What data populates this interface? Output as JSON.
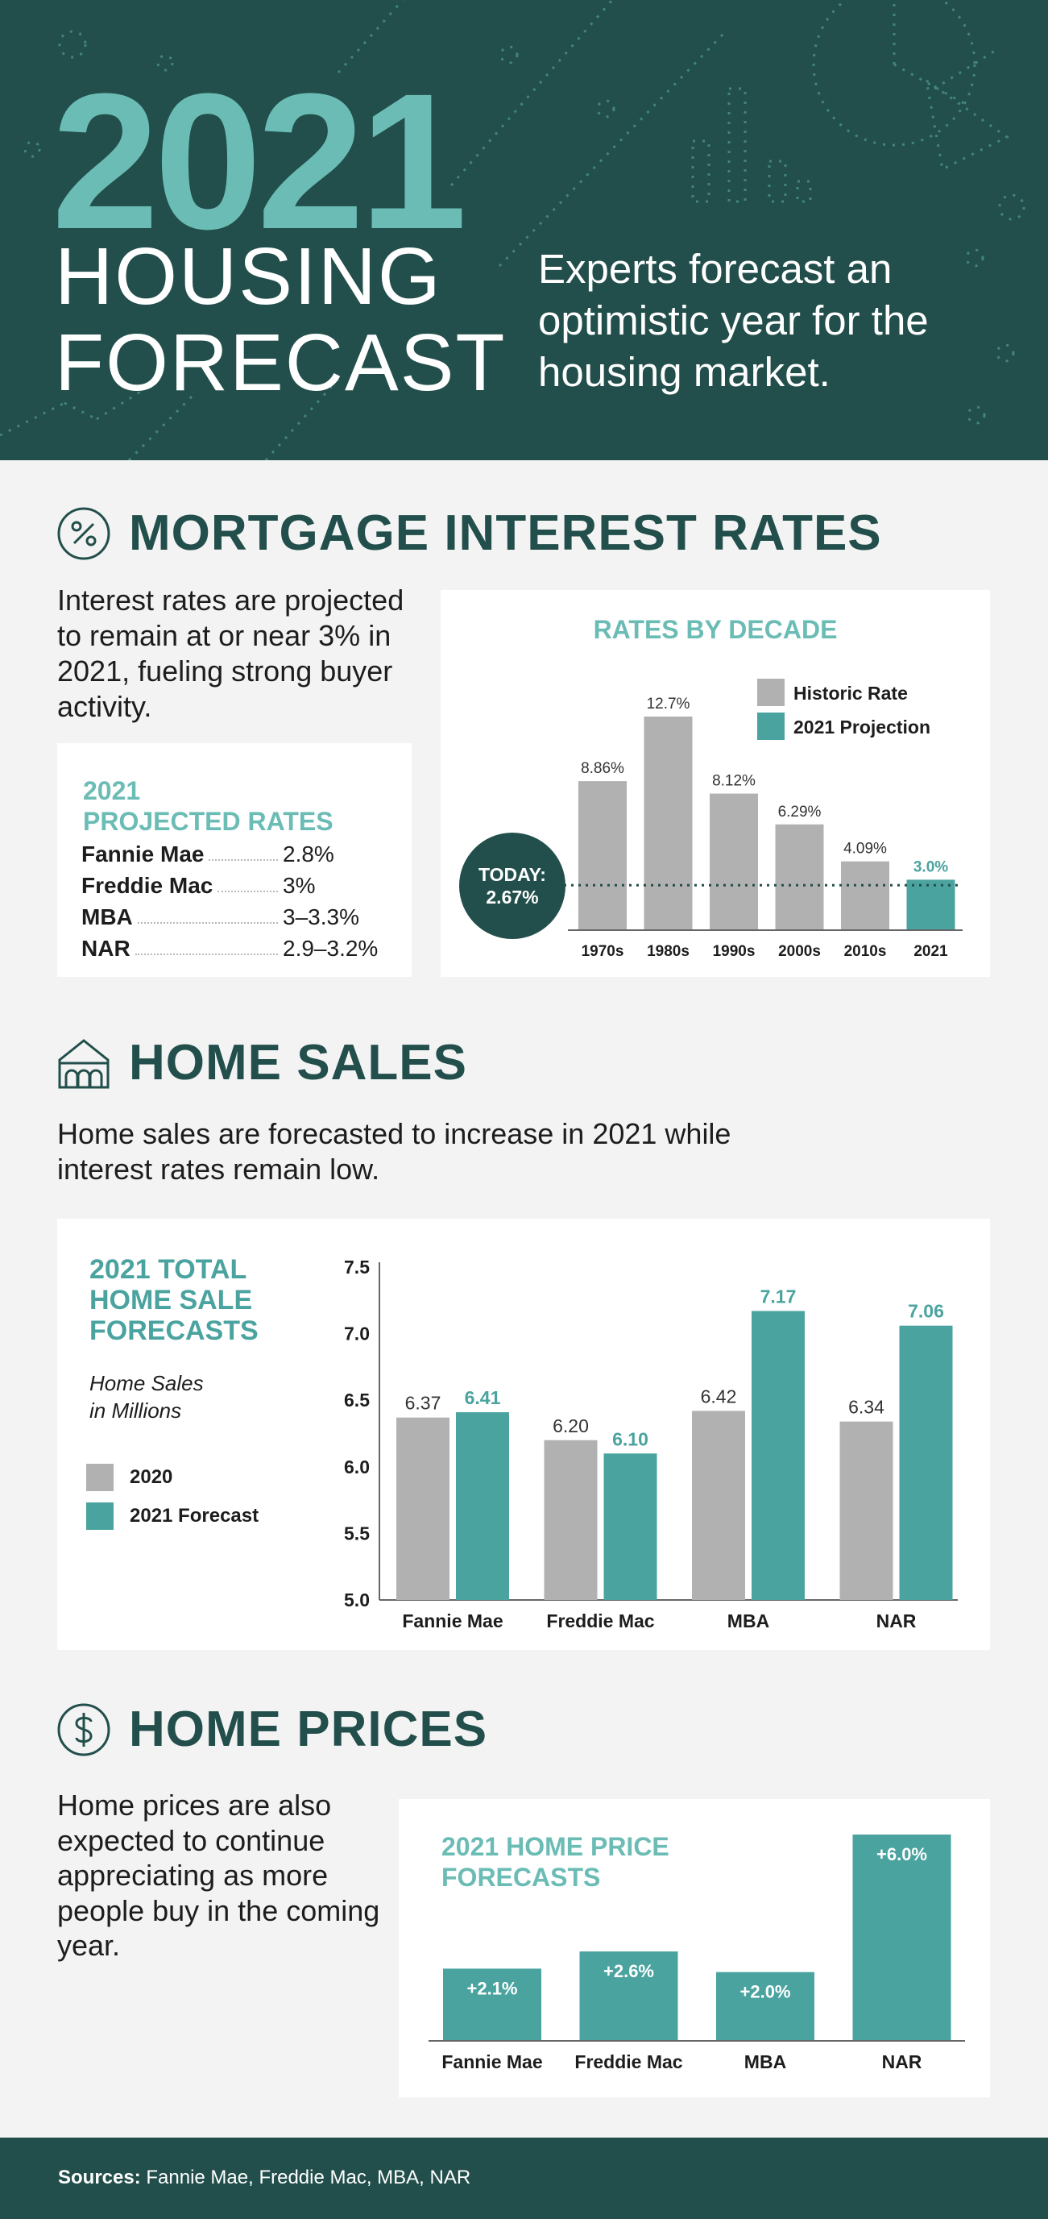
{
  "hero": {
    "year": "2021",
    "title_line1": "HOUSING",
    "title_line2": "FORECAST",
    "subtitle": "Experts forecast an optimistic year for the housing market."
  },
  "mortgage": {
    "heading": "MORTGAGE INTEREST RATES",
    "icon": "percent-icon",
    "intro": "Interest rates are projected to remain at or near 3% in 2021, fueling strong buyer activity.",
    "projected": {
      "title_line1": "2021",
      "title_line2": "PROJECTED RATES",
      "rows": [
        {
          "name": "Fannie Mae",
          "value": "2.8%"
        },
        {
          "name": "Freddie Mac",
          "value": "3%"
        },
        {
          "name": "MBA",
          "value": "3–3.3%"
        },
        {
          "name": "NAR",
          "value": "2.9–3.2%"
        }
      ]
    }
  },
  "sales": {
    "heading": "HOME SALES",
    "icon": "house-icon",
    "intro": "Home sales are forecasted to increase in 2021 while interest rates remain low.",
    "card_title_lines": [
      "2021 TOTAL",
      "HOME SALE",
      "FORECASTS"
    ],
    "unit_lines": [
      "Home Sales",
      "in Millions"
    ]
  },
  "prices": {
    "heading": "HOME PRICES",
    "icon": "dollar-icon",
    "intro": "Home prices are also expected to continue appreciating as more people buy in the coming year."
  },
  "footer": {
    "label": "Sources:",
    "text": "Fannie Mae, Freddie Mac, MBA, NAR"
  },
  "colors": {
    "dark_teal": "#224f4b",
    "teal": "#4aa39f",
    "light_teal": "#6bbcb5",
    "gray": "#b1b1b1"
  },
  "chart_data": [
    {
      "type": "bar",
      "title": "RATES BY DECADE",
      "categories": [
        "1970s",
        "1980s",
        "1990s",
        "2000s",
        "2010s",
        "2021"
      ],
      "values": [
        8.86,
        12.7,
        8.12,
        6.29,
        4.09,
        3.0
      ],
      "value_labels": [
        "8.86%",
        "12.7%",
        "8.12%",
        "6.29%",
        "4.09%",
        "3.0%"
      ],
      "series_kind": [
        "Historic Rate",
        "Historic Rate",
        "Historic Rate",
        "Historic Rate",
        "Historic Rate",
        "2021 Projection"
      ],
      "legend": [
        "Historic Rate",
        "2021 Projection"
      ],
      "legend_position": "top-right",
      "reference_line": {
        "value": 2.67,
        "label_line1": "TODAY:",
        "label_line2": "2.67%"
      },
      "ylim": [
        0,
        12.7
      ]
    },
    {
      "type": "bar",
      "title": "2021 TOTAL HOME SALE FORECASTS",
      "categories": [
        "Fannie Mae",
        "Freddie Mac",
        "MBA",
        "NAR"
      ],
      "series": [
        {
          "name": "2020",
          "values": [
            6.37,
            6.2,
            6.42,
            6.34
          ],
          "labels": [
            "6.37",
            "6.20",
            "6.42",
            "6.34"
          ]
        },
        {
          "name": "2021 Forecast",
          "values": [
            6.41,
            6.1,
            7.17,
            7.06
          ],
          "labels": [
            "6.41",
            "6.10",
            "7.17",
            "7.06"
          ]
        }
      ],
      "yticks": [
        "7.5",
        "7.0",
        "6.5",
        "6.0",
        "5.5",
        "5.0"
      ],
      "ylim": [
        5.0,
        7.5
      ],
      "legend_position": "left"
    },
    {
      "type": "bar",
      "title": "2021 HOME PRICE FORECASTS",
      "categories": [
        "Fannie Mae",
        "Freddie Mac",
        "MBA",
        "NAR"
      ],
      "values": [
        2.1,
        2.6,
        2.0,
        6.0
      ],
      "value_labels": [
        "+2.1%",
        "+2.6%",
        "+2.0%",
        "+6.0%"
      ],
      "ylim": [
        0,
        6.0
      ]
    }
  ]
}
